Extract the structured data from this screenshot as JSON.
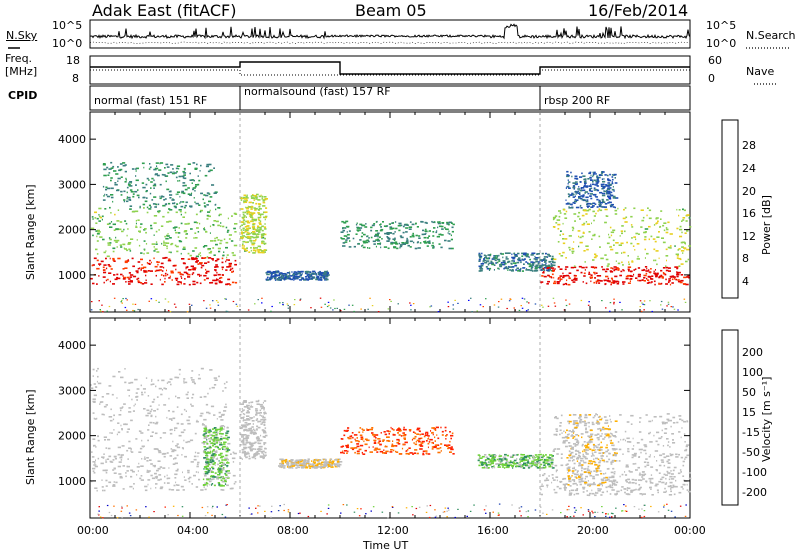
{
  "header": {
    "station": "Adak East (fitACF)",
    "beam": "Beam 05",
    "date": "16/Feb/2014"
  },
  "panels": {
    "nsky": {
      "label": "N.Sky",
      "right_label": "N.Search",
      "ticks_left": [
        "10^5",
        "10^0"
      ],
      "ticks_right": [
        "10^5",
        "10^0"
      ]
    },
    "freq": {
      "label_top": "Freq.",
      "label_unit": "[MHz]",
      "right_label": "Nave",
      "ticks_left": [
        "18",
        "8"
      ],
      "ticks_right": [
        "60",
        "0"
      ]
    },
    "cpid": {
      "label": "CPID",
      "segments": [
        {
          "label": "normal (fast) 151 RF",
          "start": "00:00",
          "end": "06:00"
        },
        {
          "label": "normalsound (fast) 157 RF",
          "start": "06:00",
          "end": "18:00"
        },
        {
          "label": "rbsp 200 RF",
          "start": "18:00",
          "end": "24:00"
        }
      ]
    },
    "power": {
      "ylabel": "Slant Range [km]",
      "colorbar_label": "Power [dB]",
      "colorbar_ticks": [
        "28",
        "24",
        "20",
        "16",
        "12",
        "8",
        "4"
      ]
    },
    "velocity": {
      "ylabel": "Slant Range [km]",
      "colorbar_label": "Velocity [m s⁻¹]",
      "colorbar_ticks": [
        "200",
        "100",
        "50",
        "15",
        "-15",
        "-50",
        "-100",
        "-200"
      ]
    }
  },
  "colors": {
    "power_scale": [
      "#0000ff",
      "#1f4fb0",
      "#3a7f7f",
      "#2f9e4f",
      "#8fd24f",
      "#e8d020",
      "#ff9a00",
      "#ff3c00",
      "#e00000"
    ],
    "velocity_scale": [
      "#0000c8",
      "#1a3fb0",
      "#2f8f5f",
      "#6fd23a",
      "#bdbdbd",
      "#bdbdbd",
      "#ffb000",
      "#ff7000",
      "#ff2000",
      "#e00000"
    ],
    "ground": "#bdbdbd"
  },
  "chart_data": [
    {
      "type": "heatmap",
      "name": "power",
      "xlabel": "Time UT",
      "ylabel": "Slant Range [km]",
      "x_ticks": [
        "00:00",
        "04:00",
        "08:00",
        "12:00",
        "16:00",
        "20:00",
        "00:00"
      ],
      "y_ticks": [
        1000,
        2000,
        3000,
        4000
      ],
      "ylim": [
        180,
        4600
      ],
      "xlim_hours": [
        0,
        24
      ],
      "colorbar_range": [
        0,
        30
      ],
      "regions": [
        {
          "t": [
            0.0,
            5.8
          ],
          "r": [
            800,
            1400
          ],
          "value": 28
        },
        {
          "t": [
            0.0,
            5.8
          ],
          "r": [
            1400,
            2500
          ],
          "value": 14
        },
        {
          "t": [
            0.5,
            5.0
          ],
          "r": [
            2500,
            3500
          ],
          "value": 10
        },
        {
          "t": [
            6.0,
            7.0
          ],
          "r": [
            1500,
            2800
          ],
          "value": 16
        },
        {
          "t": [
            7.0,
            9.5
          ],
          "r": [
            900,
            1100
          ],
          "value": 6
        },
        {
          "t": [
            10.0,
            14.5
          ],
          "r": [
            1600,
            2200
          ],
          "value": 10
        },
        {
          "t": [
            15.5,
            18.5
          ],
          "r": [
            1100,
            1500
          ],
          "value": 8
        },
        {
          "t": [
            18.0,
            24.0
          ],
          "r": [
            800,
            1200
          ],
          "value": 28
        },
        {
          "t": [
            18.5,
            24.0
          ],
          "r": [
            1200,
            2500
          ],
          "value": 16
        },
        {
          "t": [
            19.0,
            21.0
          ],
          "r": [
            2500,
            3300
          ],
          "value": 6
        }
      ]
    },
    {
      "type": "heatmap",
      "name": "velocity",
      "xlabel": "Time UT",
      "ylabel": "Slant Range [km]",
      "x_ticks": [
        "00:00",
        "04:00",
        "08:00",
        "12:00",
        "16:00",
        "20:00",
        "00:00"
      ],
      "y_ticks": [
        1000,
        2000,
        3000,
        4000
      ],
      "ylim": [
        180,
        4600
      ],
      "xlim_hours": [
        0,
        24
      ],
      "colorbar_range": [
        -250,
        250
      ],
      "regions": [
        {
          "t": [
            0.0,
            5.8
          ],
          "r": [
            800,
            1800
          ],
          "value": 0
        },
        {
          "t": [
            0.0,
            5.5
          ],
          "r": [
            1800,
            3500
          ],
          "value": 0
        },
        {
          "t": [
            4.5,
            5.5
          ],
          "r": [
            900,
            2200
          ],
          "value": -80
        },
        {
          "t": [
            6.0,
            7.0
          ],
          "r": [
            1500,
            2800
          ],
          "value": 0
        },
        {
          "t": [
            7.5,
            10.0
          ],
          "r": [
            1300,
            1500
          ],
          "value": 40
        },
        {
          "t": [
            10.0,
            14.5
          ],
          "r": [
            1600,
            2200
          ],
          "value": 150
        },
        {
          "t": [
            15.5,
            18.5
          ],
          "r": [
            1300,
            1600
          ],
          "value": -80
        },
        {
          "t": [
            18.0,
            24.0
          ],
          "r": [
            700,
            1300
          ],
          "value": 0
        },
        {
          "t": [
            18.5,
            24.0
          ],
          "r": [
            1300,
            2500
          ],
          "value": 0
        },
        {
          "t": [
            19.0,
            21.0
          ],
          "r": [
            900,
            2500
          ],
          "value": 40
        }
      ]
    }
  ]
}
